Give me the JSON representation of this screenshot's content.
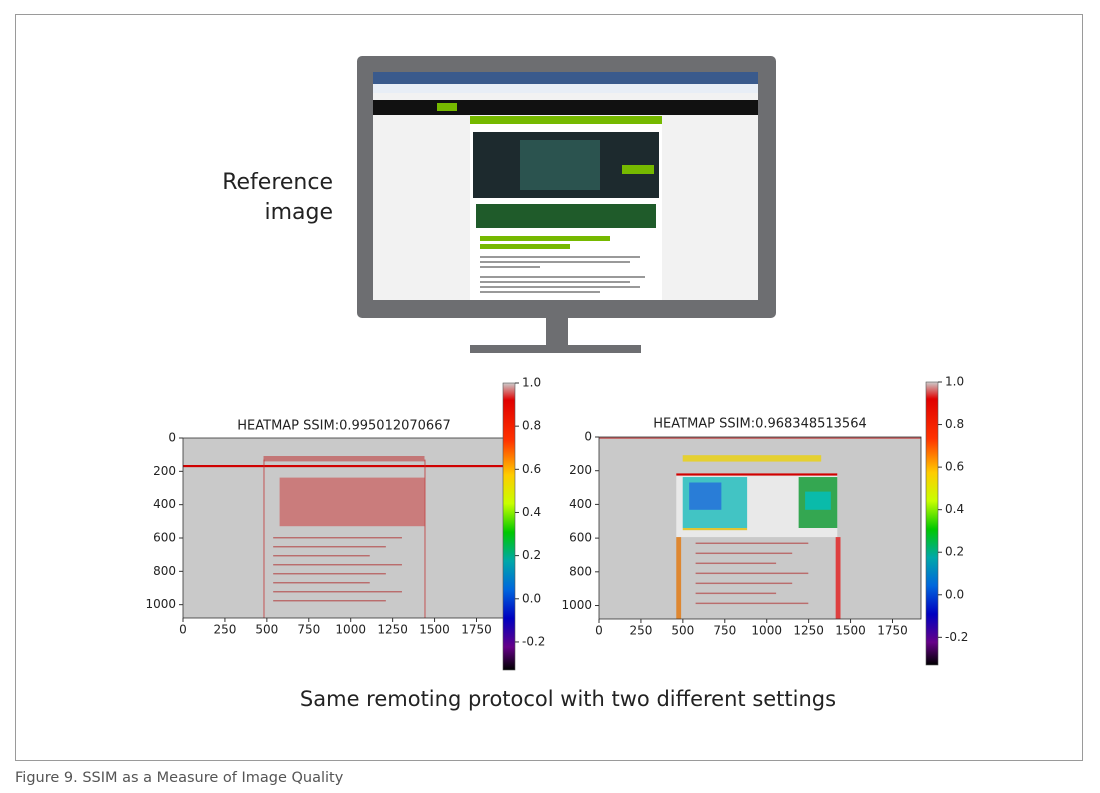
{
  "reference_label": [
    "Reference",
    "image"
  ],
  "heatmaps": [
    {
      "title": "HEATMAP SSIM:0.995012070667",
      "xlim": [
        0,
        1920
      ],
      "ylim": [
        1080,
        0
      ],
      "xticks": [
        0,
        250,
        500,
        750,
        1000,
        1250,
        1500,
        1750
      ],
      "yticks": [
        0,
        200,
        400,
        600,
        800,
        1000
      ],
      "colorbar": {
        "clim": [
          -0.33,
          1
        ],
        "ticks": [
          {
            "value": 1,
            "label": "1.0"
          },
          0.8,
          0.6,
          0.4,
          0.2,
          {
            "value": 0,
            "label": "0.0"
          },
          -0.2
        ]
      }
    },
    {
      "title": "HEATMAP SSIM:0.968348513564",
      "xlim": [
        0,
        1920
      ],
      "ylim": [
        1080,
        0
      ],
      "xticks": [
        0,
        250,
        500,
        750,
        1000,
        1250,
        1500,
        1750
      ],
      "yticks": [
        0,
        200,
        400,
        600,
        800,
        1000
      ],
      "colorbar": {
        "clim": [
          -0.33,
          1
        ],
        "ticks": [
          {
            "value": 1,
            "label": "1.0"
          },
          0.8,
          0.6,
          0.4,
          0.2,
          {
            "value": 0,
            "label": "0.0"
          },
          -0.2
        ]
      }
    }
  ],
  "caption_text": "Same remoting protocol with two different settings",
  "figure_caption": "Figure 9. SSIM as a Measure of Image Quality"
}
